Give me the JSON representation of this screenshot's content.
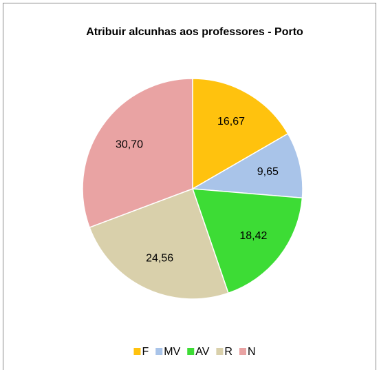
{
  "chart_data": {
    "type": "pie",
    "title": "Atribuir alcunhas aos professores - Porto",
    "categories": [
      "F",
      "MV",
      "AV",
      "R",
      "N"
    ],
    "values": [
      16.67,
      9.65,
      18.42,
      24.56,
      30.7
    ],
    "value_labels": [
      "16,67",
      "9,65",
      "18,42",
      "24,56",
      "30,70"
    ],
    "colors": [
      "#ffc20e",
      "#a9c4e9",
      "#3ddc35",
      "#d9d0ab",
      "#e9a3a3"
    ],
    "legend": "bottom"
  }
}
